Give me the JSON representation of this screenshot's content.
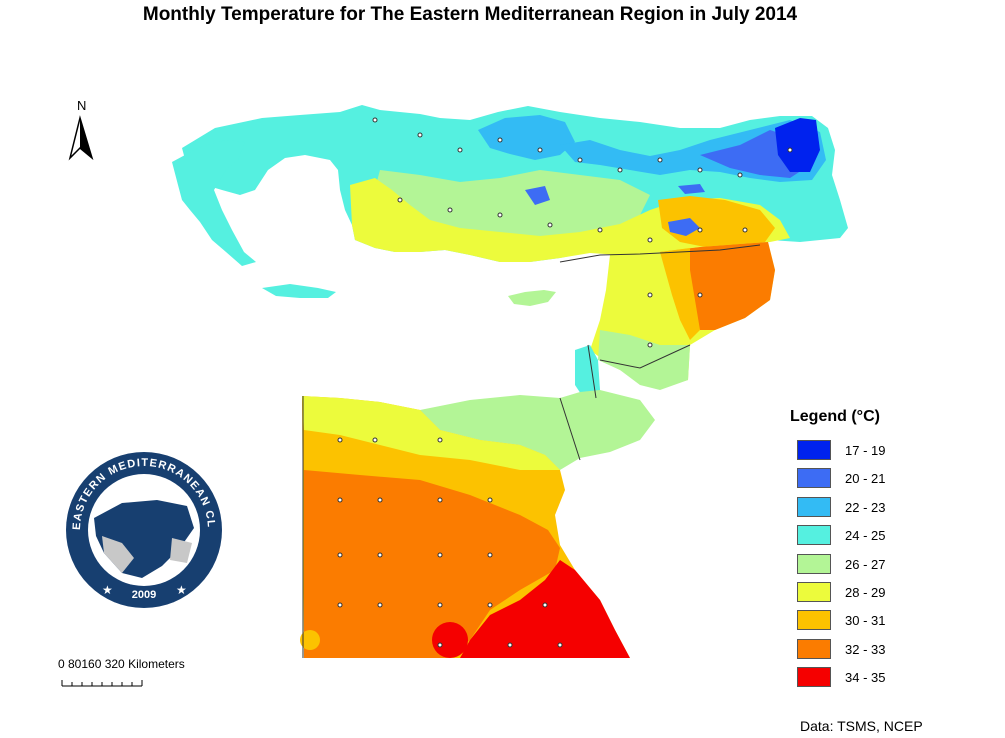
{
  "title": "Monthly Temperature  for The Eastern Mediterranean Region in July 2014",
  "north_label": "N",
  "scale": {
    "text": "0  80160    320 Kilometers"
  },
  "legend": {
    "title": "Legend (°C)",
    "items": [
      {
        "label": "17 - 19",
        "color": "#0022ee"
      },
      {
        "label": "20 - 21",
        "color": "#3d6cf4"
      },
      {
        "label": "22 - 23",
        "color": "#33bbf4"
      },
      {
        "label": "24 - 25",
        "color": "#55f0e0"
      },
      {
        "label": "26 - 27",
        "color": "#b3f596"
      },
      {
        "label": "28 - 29",
        "color": "#ecfb3c"
      },
      {
        "label": "30 - 31",
        "color": "#fcc200"
      },
      {
        "label": "32 - 33",
        "color": "#fb7c00"
      },
      {
        "label": "34 - 35",
        "color": "#f50000"
      }
    ]
  },
  "logo": {
    "ring_text": "EASTERN MEDITERRANEAN CLIMATE CENTRE",
    "year": "2009"
  },
  "source": "Data: TSMS, NCEP"
}
